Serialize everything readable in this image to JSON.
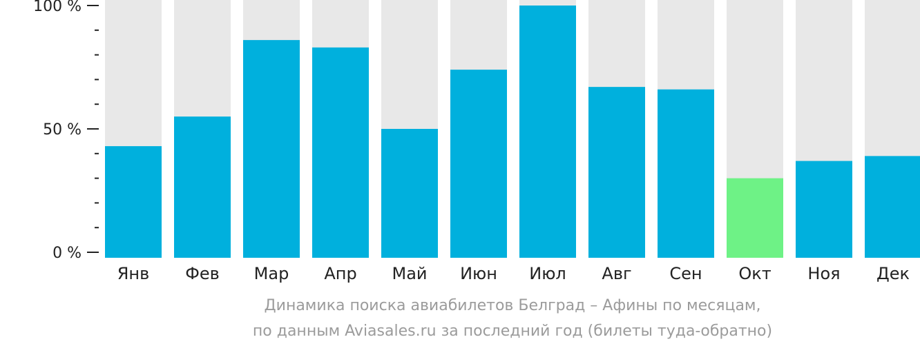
{
  "chart_data": {
    "type": "bar",
    "categories": [
      "Янв",
      "Фев",
      "Мар",
      "Апр",
      "Май",
      "Июн",
      "Июл",
      "Авг",
      "Сен",
      "Окт",
      "Ноя",
      "Дек"
    ],
    "values": [
      43,
      55,
      86,
      83,
      50,
      74,
      100,
      67,
      66,
      30,
      37,
      39
    ],
    "ylim": [
      0,
      100
    ],
    "y_tick_labels": [
      "100 %",
      "50 %",
      "0 %"
    ],
    "y_tick_values": [
      100,
      50,
      0
    ],
    "y_minor_tick_step": 10,
    "highlight_index": 9,
    "colors": {
      "bar": "#00b0dd",
      "highlight": "#6ef286",
      "track": "#e8e8e8",
      "axis": "#222222"
    },
    "grid": false,
    "legend": "none"
  },
  "caption": {
    "line1": "Динамика поиска авиабилетов Белград – Афины по месяцам,",
    "line2": "по данным Aviasales.ru за последний год (билеты туда-обратно)"
  }
}
